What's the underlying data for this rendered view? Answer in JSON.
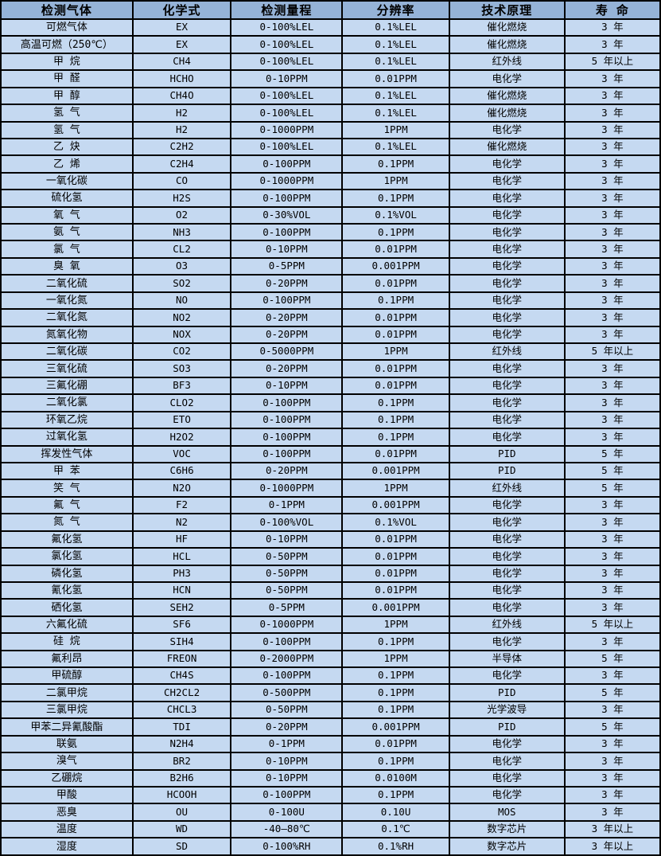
{
  "colors": {
    "header_bg": "#95B3D7",
    "row_bg": "#C5D9F1",
    "border": "#000000",
    "text": "#000000"
  },
  "table": {
    "columns": [
      "检测气体",
      "化学式",
      "检测量程",
      "分辨率",
      "技术原理",
      "寿 命"
    ],
    "rows": [
      [
        "可燃气体",
        "EX",
        "0-100%LEL",
        "0.1%LEL",
        "催化燃烧",
        "3 年"
      ],
      [
        "高温可燃（250℃）",
        "EX",
        "0-100%LEL",
        "0.1%LEL",
        "催化燃烧",
        "3 年"
      ],
      [
        "甲 烷",
        "CH4",
        "0-100%LEL",
        "0.1%LEL",
        "红外线",
        "5 年以上"
      ],
      [
        "甲 醛",
        "HCHO",
        "0-10PPM",
        "0.01PPM",
        "电化学",
        "3 年"
      ],
      [
        "甲 醇",
        "CH4O",
        "0-100%LEL",
        "0.1%LEL",
        "催化燃烧",
        "3 年"
      ],
      [
        "氢 气",
        "H2",
        "0-100%LEL",
        "0.1%LEL",
        "催化燃烧",
        "3 年"
      ],
      [
        "氢 气",
        "H2",
        "0-1000PPM",
        "1PPM",
        "电化学",
        "3 年"
      ],
      [
        "乙 炔",
        "C2H2",
        "0-100%LEL",
        "0.1%LEL",
        "催化燃烧",
        "3 年"
      ],
      [
        "乙 烯",
        "C2H4",
        "0-100PPM",
        "0.1PPM",
        "电化学",
        "3 年"
      ],
      [
        "一氧化碳",
        "CO",
        "0-1000PPM",
        "1PPM",
        "电化学",
        "3 年"
      ],
      [
        "硫化氢",
        "H2S",
        "0-100PPM",
        "0.1PPM",
        "电化学",
        "3 年"
      ],
      [
        "氧 气",
        "O2",
        "0-30%VOL",
        "0.1%VOL",
        "电化学",
        "3 年"
      ],
      [
        "氨 气",
        "NH3",
        "0-100PPM",
        "0.1PPM",
        "电化学",
        "3 年"
      ],
      [
        "氯 气",
        "CL2",
        "0-10PPM",
        "0.01PPM",
        "电化学",
        "3 年"
      ],
      [
        "臭 氧",
        "O3",
        "0-5PPM",
        "0.001PPM",
        "电化学",
        "3 年"
      ],
      [
        "二氧化硫",
        "SO2",
        "0-20PPM",
        "0.01PPM",
        "电化学",
        "3 年"
      ],
      [
        "一氧化氮",
        "NO",
        "0-100PPM",
        "0.1PPM",
        "电化学",
        "3 年"
      ],
      [
        "二氧化氮",
        "NO2",
        "0-20PPM",
        "0.01PPM",
        "电化学",
        "3 年"
      ],
      [
        "氮氧化物",
        "NOX",
        "0-20PPM",
        "0.01PPM",
        "电化学",
        "3 年"
      ],
      [
        "二氧化碳",
        "CO2",
        "0-5000PPM",
        "1PPM",
        "红外线",
        "5 年以上"
      ],
      [
        "三氧化硫",
        "SO3",
        "0-20PPM",
        "0.01PPM",
        "电化学",
        "3 年"
      ],
      [
        "三氟化硼",
        "BF3",
        "0-10PPM",
        "0.01PPM",
        "电化学",
        "3 年"
      ],
      [
        "二氧化氯",
        "CLO2",
        "0-100PPM",
        "0.1PPM",
        "电化学",
        "3 年"
      ],
      [
        "环氧乙烷",
        "ETO",
        "0-100PPM",
        "0.1PPM",
        "电化学",
        "3 年"
      ],
      [
        "过氧化氢",
        "H2O2",
        "0-100PPM",
        "0.1PPM",
        "电化学",
        "3 年"
      ],
      [
        "挥发性气体",
        "VOC",
        "0-100PPM",
        "0.01PPM",
        "PID",
        "5 年"
      ],
      [
        "甲 苯",
        "C6H6",
        "0-20PPM",
        "0.001PPM",
        "PID",
        "5 年"
      ],
      [
        "笑 气",
        "N2O",
        "0-1000PPM",
        "1PPM",
        "红外线",
        "5 年"
      ],
      [
        "氟 气",
        "F2",
        "0-1PPM",
        "0.001PPM",
        "电化学",
        "3 年"
      ],
      [
        "氮 气",
        "N2",
        "0-100%VOL",
        "0.1%VOL",
        "电化学",
        "3 年"
      ],
      [
        "氟化氢",
        "HF",
        "0-10PPM",
        "0.01PPM",
        "电化学",
        "3 年"
      ],
      [
        "氯化氢",
        "HCL",
        "0-50PPM",
        "0.01PPM",
        "电化学",
        "3 年"
      ],
      [
        "磷化氢",
        "PH3",
        "0-50PPM",
        "0.01PPM",
        "电化学",
        "3 年"
      ],
      [
        "氰化氢",
        "HCN",
        "0-50PPM",
        "0.01PPM",
        "电化学",
        "3 年"
      ],
      [
        "硒化氢",
        "SEH2",
        "0-5PPM",
        "0.001PPM",
        "电化学",
        "3 年"
      ],
      [
        "六氟化硫",
        "SF6",
        "0-1000PPM",
        "1PPM",
        "红外线",
        "5 年以上"
      ],
      [
        "硅 烷",
        "SIH4",
        "0-100PPM",
        "0.1PPM",
        "电化学",
        "3 年"
      ],
      [
        "氟利昂",
        "FREON",
        "0-2000PPM",
        "1PPM",
        "半导体",
        "5 年"
      ],
      [
        "甲硫醇",
        "CH4S",
        "0-100PPM",
        "0.1PPM",
        "电化学",
        "3 年"
      ],
      [
        "二氯甲烷",
        "CH2CL2",
        "0-500PPM",
        "0.1PPM",
        "PID",
        "5 年"
      ],
      [
        "三氯甲烷",
        "CHCL3",
        "0-50PPM",
        "0.1PPM",
        "光学波导",
        "3 年"
      ],
      [
        "甲苯二异氰酸酯",
        "TDI",
        "0-20PPM",
        "0.001PPM",
        "PID",
        "5 年"
      ],
      [
        "联氨",
        "N2H4",
        "0-1PPM",
        "0.01PPM",
        "电化学",
        "3 年"
      ],
      [
        "溴气",
        "BR2",
        "0-10PPM",
        "0.1PPM",
        "电化学",
        "3 年"
      ],
      [
        "乙硼烷",
        "B2H6",
        "0-10PPM",
        "0.0100M",
        "电化学",
        "3 年"
      ],
      [
        "甲酸",
        "HCOOH",
        "0-100PPM",
        "0.1PPM",
        "电化学",
        "3 年"
      ],
      [
        "恶臭",
        "OU",
        "0-100U",
        "0.10U",
        "MOS",
        "3 年"
      ],
      [
        "温度",
        "WD",
        "-40—80℃",
        "0.1℃",
        "数字芯片",
        "3 年以上"
      ],
      [
        "湿度",
        "SD",
        "0-100%RH",
        "0.1%RH",
        "数字芯片",
        "3 年以上"
      ]
    ]
  }
}
